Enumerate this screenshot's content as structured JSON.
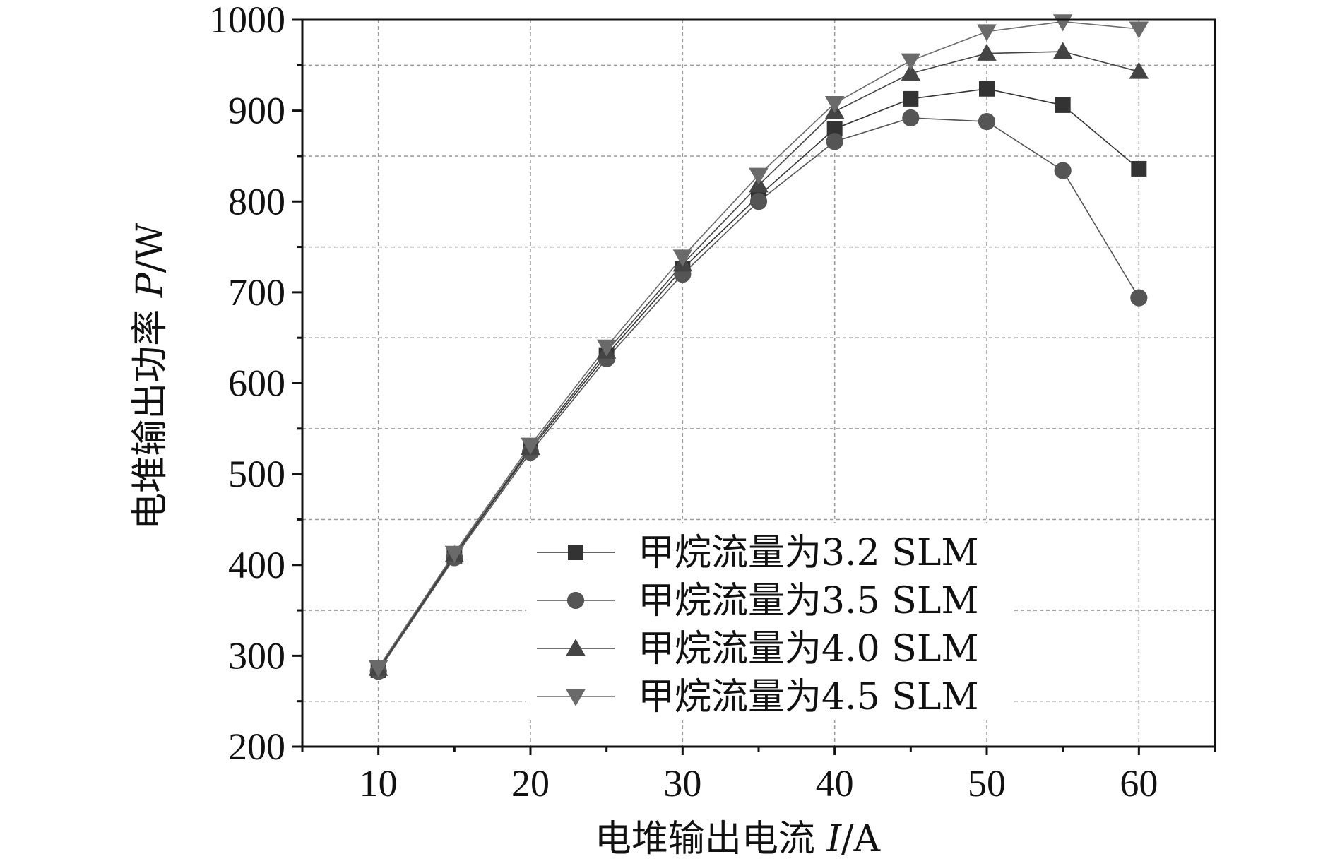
{
  "chart_data": {
    "type": "line",
    "xlabel_prefix": "电堆输出电流 ",
    "xlabel_var": "I",
    "xlabel_unit": "/A",
    "ylabel_prefix": "电堆输出功率 ",
    "ylabel_var": "P",
    "ylabel_unit": "/W",
    "xlim": [
      5,
      65
    ],
    "ylim": [
      200,
      1000
    ],
    "x_ticks": [
      10,
      20,
      30,
      40,
      50,
      60
    ],
    "y_ticks": [
      200,
      300,
      400,
      500,
      600,
      700,
      800,
      900,
      1000
    ],
    "grid": true,
    "legend_position": "bottom-right",
    "x": [
      10,
      15,
      20,
      25,
      30,
      35,
      40,
      45,
      50,
      55,
      60
    ],
    "series": [
      {
        "name": "甲烷流量为3.2 SLM",
        "marker": "square",
        "color": "#333333",
        "values": [
          284,
          410,
          527,
          631,
          726,
          806,
          880,
          913,
          924,
          906,
          836
        ]
      },
      {
        "name": "甲烷流量为3.5 SLM",
        "marker": "circle",
        "color": "#555555",
        "values": [
          283,
          408,
          524,
          627,
          720,
          800,
          866,
          892,
          888,
          834,
          694
        ]
      },
      {
        "name": "甲烷流量为4.0 SLM",
        "marker": "triangle-up",
        "color": "#444444",
        "values": [
          286,
          411,
          529,
          635,
          731,
          818,
          899,
          941,
          963,
          965,
          943
        ]
      },
      {
        "name": "甲烷流量为4.5 SLM",
        "marker": "triangle-down",
        "color": "#6a6a6a",
        "values": [
          287,
          413,
          532,
          640,
          739,
          829,
          908,
          955,
          987,
          998,
          990
        ]
      }
    ]
  }
}
